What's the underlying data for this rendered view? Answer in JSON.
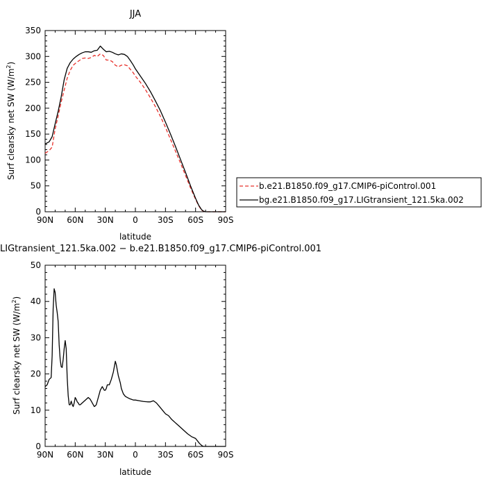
{
  "chart_data": [
    {
      "type": "line",
      "title": "JJA",
      "xlabel": "latitude",
      "ylabel": "Surf clearsky net SW (W/m",
      "ylabel_sup": "2",
      "ylabel_close": ")",
      "xlim": [
        90,
        -90
      ],
      "ylim": [
        0,
        350
      ],
      "x_ticks": [
        90,
        60,
        30,
        0,
        -30,
        -60,
        -90
      ],
      "x_tick_labels": [
        "90N",
        "60N",
        "30N",
        "0",
        "30S",
        "60S",
        "90S"
      ],
      "y_ticks": [
        0,
        50,
        100,
        150,
        200,
        250,
        300,
        350
      ],
      "y_tick_labels": [
        "0",
        "50",
        "100",
        "150",
        "200",
        "250",
        "300",
        "350"
      ],
      "legend_position": "right",
      "series": [
        {
          "name": "b.e21.B1850.f09_g17.CMIP6-piControl.001",
          "color": "#e8302a",
          "dash": "dashed",
          "x": [
            90,
            86,
            83,
            80,
            77,
            74,
            71,
            68,
            65,
            62,
            59,
            56,
            53,
            50,
            47,
            44,
            41,
            38,
            35,
            32,
            29,
            26,
            23,
            20,
            17,
            14,
            11,
            8,
            5,
            2,
            0,
            -5,
            -10,
            -15,
            -20,
            -25,
            -30,
            -35,
            -40,
            -45,
            -50,
            -55,
            -60,
            -63,
            -66,
            -68,
            -70,
            -75,
            -80,
            -85,
            -90
          ],
          "y": [
            113,
            118,
            125,
            160,
            185,
            212,
            235,
            258,
            273,
            283,
            288,
            292,
            296,
            297,
            296,
            298,
            302,
            300,
            305,
            302,
            293,
            293,
            290,
            283,
            280,
            283,
            284,
            282,
            275,
            268,
            262,
            250,
            236,
            220,
            203,
            184,
            163,
            140,
            117,
            94,
            70,
            46,
            24,
            12,
            3,
            1,
            0,
            0,
            0,
            0,
            0
          ]
        },
        {
          "name": "bg.e21.B1850.f09_g17.LIGtransient_121.5ka.002",
          "color": "#000000",
          "dash": "solid",
          "x": [
            90,
            86,
            83,
            80,
            77,
            74,
            71,
            68,
            65,
            62,
            59,
            56,
            53,
            50,
            47,
            44,
            41,
            38,
            35,
            32,
            29,
            26,
            23,
            20,
            17,
            14,
            11,
            8,
            5,
            2,
            0,
            -5,
            -10,
            -15,
            -20,
            -25,
            -30,
            -35,
            -40,
            -45,
            -50,
            -55,
            -60,
            -63,
            -66,
            -68,
            -70,
            -75,
            -80,
            -85,
            -90
          ],
          "y": [
            131,
            135,
            145,
            170,
            194,
            222,
            255,
            277,
            288,
            295,
            300,
            304,
            307,
            309,
            309,
            308,
            311,
            312,
            320,
            314,
            309,
            310,
            308,
            305,
            303,
            305,
            304,
            300,
            292,
            283,
            276,
            262,
            248,
            232,
            214,
            195,
            173,
            150,
            126,
            101,
            76,
            50,
            26,
            13,
            4,
            1,
            0,
            0,
            0,
            0,
            0
          ]
        }
      ]
    },
    {
      "type": "line",
      "title": "LIGtransient_121.5ka.002 − b.e21.B1850.f09_g17.CMIP6-piControl.001",
      "xlabel": "latitude",
      "ylabel": "Surf clearsky net SW (W/m",
      "ylabel_sup": "2",
      "ylabel_close": ")",
      "xlim": [
        90,
        -90
      ],
      "ylim": [
        0,
        50
      ],
      "x_ticks": [
        90,
        60,
        30,
        0,
        -30,
        -60,
        -90
      ],
      "x_tick_labels": [
        "90N",
        "60N",
        "30N",
        "0",
        "30S",
        "60S",
        "90S"
      ],
      "y_ticks": [
        0,
        10,
        20,
        30,
        40,
        50
      ],
      "y_tick_labels": [
        "0",
        "10",
        "20",
        "30",
        "40",
        "50"
      ],
      "series": [
        {
          "color": "#000000",
          "dash": "solid",
          "x": [
            90,
            88,
            86,
            84,
            83,
            82,
            81,
            80,
            79,
            78,
            77,
            76,
            75,
            74,
            73,
            72,
            71,
            70,
            69,
            68,
            67,
            66,
            65,
            64,
            63,
            62,
            61,
            60,
            59,
            58,
            57,
            56,
            55,
            53,
            51,
            49,
            47,
            45,
            43,
            41,
            40,
            39,
            38,
            36,
            35,
            34,
            33,
            32,
            31,
            30,
            29,
            28,
            26,
            24,
            22,
            21,
            20,
            19,
            18,
            17,
            16,
            15,
            14,
            12,
            10,
            8,
            6,
            4,
            2,
            0,
            -4,
            -8,
            -12,
            -15,
            -18,
            -21,
            -24,
            -27,
            -30,
            -33,
            -36,
            -40,
            -44,
            -48,
            -52,
            -56,
            -60,
            -62,
            -64,
            -66,
            -67,
            -68,
            -70,
            -75,
            -80,
            -85,
            -90
          ],
          "y": [
            16.5,
            17,
            18.5,
            19,
            25,
            38,
            43.5,
            42.5,
            39,
            37,
            34.5,
            28,
            24,
            22,
            21.8,
            24,
            27,
            29.2,
            27,
            19,
            14,
            11.5,
            11.5,
            12.5,
            11.5,
            11,
            12,
            13.5,
            13,
            12.3,
            12,
            11.5,
            11.5,
            12,
            12.5,
            13,
            13.5,
            13,
            12,
            11,
            11.2,
            11.5,
            12.5,
            14.5,
            15.5,
            16,
            16.5,
            16,
            15.5,
            15.5,
            16,
            17,
            17,
            18.5,
            20.5,
            22,
            23.5,
            22.5,
            21,
            19.5,
            18.5,
            17.5,
            16,
            14.5,
            13.8,
            13.5,
            13.2,
            13,
            12.8,
            12.8,
            12.6,
            12.4,
            12.3,
            12.3,
            12.6,
            12,
            11,
            10,
            9,
            8.5,
            7.5,
            6.5,
            5.5,
            4.5,
            3.5,
            2.7,
            2.2,
            1.5,
            0.8,
            0.3,
            0.1,
            0,
            0,
            0,
            0,
            0,
            0
          ]
        }
      ]
    }
  ]
}
